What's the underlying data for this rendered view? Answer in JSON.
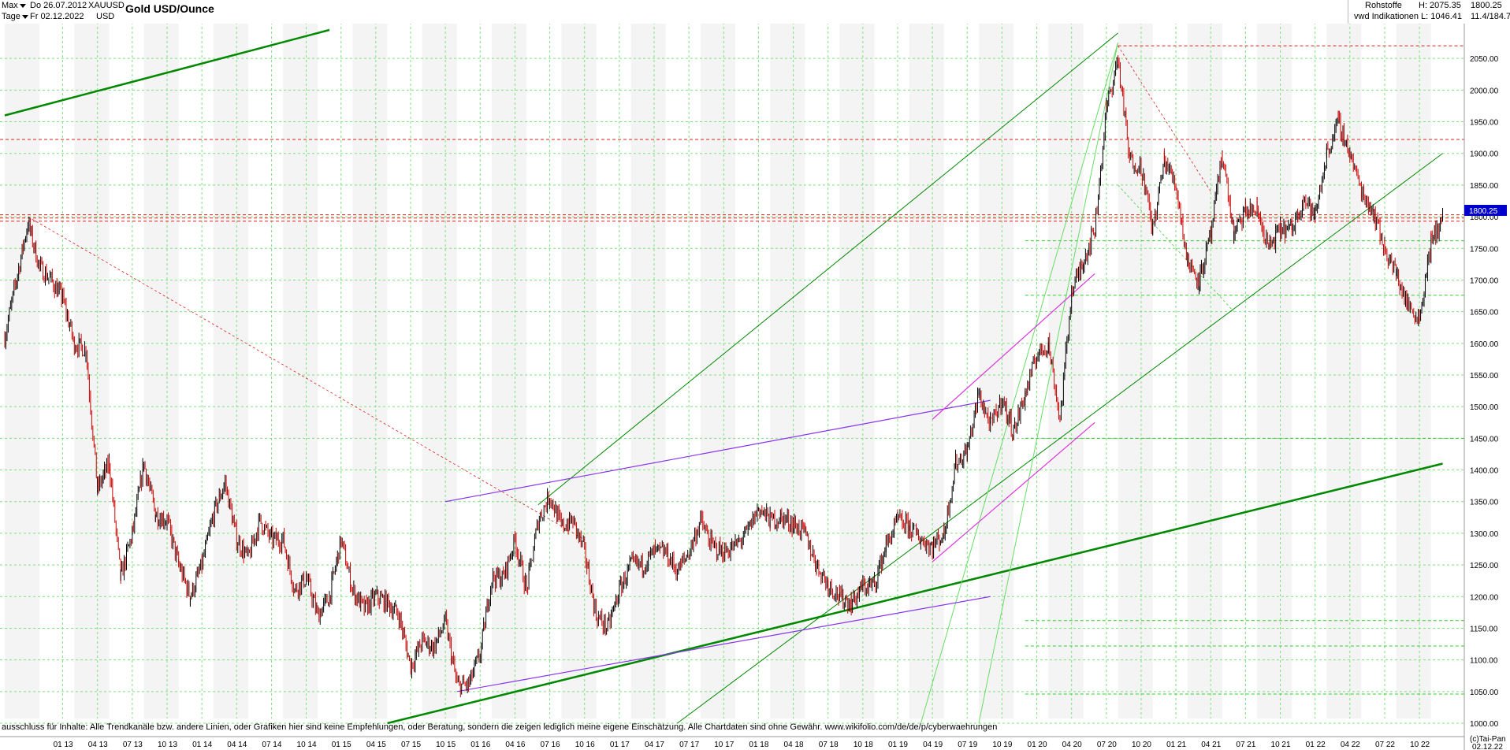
{
  "header": {
    "range_select": "Max",
    "interval_select": "Tage",
    "date_from": "Do 26.07.2012",
    "date_to": "Fr 02.12.2022",
    "symbol": "XAUUSD",
    "currency": "USD",
    "title": "Gold USD/Ounce",
    "category": "Rohstoffe",
    "source": "vwd Indikationen",
    "high_label": "H: 2075.35",
    "low_label": "L: 1046.41",
    "last_value": "1800.25",
    "range_info": "11.4/184.7"
  },
  "footer": {
    "disclaimer": "ausschluss für Inhalte: Alle Trendkanäle bzw. andere Linien, oder Grafiken hier sind keine Empfehlungen, oder Beratung, sondern die zeigen lediglich meine eigene Einschätzung. Alle Chartdaten sind ohne Gewähr.  www.wikifolio.com/de/de/p/cyberwaehrungen",
    "copyright": "(c)Tai-Pan",
    "last_date": "02.12.22"
  },
  "colors": {
    "candle_up": "#000000",
    "candle_down": "#cc0000",
    "grid": "#7fe07f",
    "trend_green": "#008800",
    "trend_light": "#66dd66",
    "trend_purple": "#8833ee",
    "trend_magenta": "#dd33dd",
    "support_red": "#dd2222",
    "current_price_bg": "#0000cc"
  },
  "chart_data": {
    "type": "candlestick",
    "title": "Gold USD/Ounce",
    "ylim": [
      1000,
      2100
    ],
    "y_ticks": [
      1000,
      1050,
      1100,
      1150,
      1200,
      1250,
      1300,
      1350,
      1400,
      1450,
      1500,
      1550,
      1600,
      1650,
      1700,
      1750,
      1800,
      1850,
      1900,
      1950,
      2000,
      2050
    ],
    "x_ticks": [
      "01 13",
      "04 13",
      "07 13",
      "10 13",
      "01 14",
      "04 14",
      "07 14",
      "10 14",
      "01 15",
      "04 15",
      "07 15",
      "10 15",
      "01 16",
      "04 16",
      "07 16",
      "10 16",
      "01 17",
      "04 17",
      "07 17",
      "10 17",
      "01 18",
      "04 18",
      "07 18",
      "10 18",
      "01 19",
      "04 19",
      "07 19",
      "10 19",
      "01 20",
      "04 20",
      "07 20",
      "10 20",
      "01 21",
      "04 21",
      "07 21",
      "10 21",
      "01 22",
      "04 22",
      "07 22",
      "10 22"
    ],
    "price_path": [
      [
        "2012-08",
        1610
      ],
      [
        "2012-09",
        1700
      ],
      [
        "2012-10",
        1790
      ],
      [
        "2012-11",
        1720
      ],
      [
        "2012-12",
        1700
      ],
      [
        "2013-01",
        1670
      ],
      [
        "2013-02",
        1600
      ],
      [
        "2013-03",
        1590
      ],
      [
        "2013-04",
        1370
      ],
      [
        "2013-05",
        1410
      ],
      [
        "2013-06",
        1230
      ],
      [
        "2013-07",
        1300
      ],
      [
        "2013-08",
        1410
      ],
      [
        "2013-09",
        1330
      ],
      [
        "2013-10",
        1320
      ],
      [
        "2013-11",
        1250
      ],
      [
        "2013-12",
        1200
      ],
      [
        "2014-01",
        1250
      ],
      [
        "2014-02",
        1330
      ],
      [
        "2014-03",
        1380
      ],
      [
        "2014-04",
        1290
      ],
      [
        "2014-05",
        1260
      ],
      [
        "2014-06",
        1320
      ],
      [
        "2014-07",
        1290
      ],
      [
        "2014-08",
        1290
      ],
      [
        "2014-09",
        1210
      ],
      [
        "2014-10",
        1230
      ],
      [
        "2014-11",
        1170
      ],
      [
        "2014-12",
        1200
      ],
      [
        "2015-01",
        1290
      ],
      [
        "2015-02",
        1210
      ],
      [
        "2015-03",
        1180
      ],
      [
        "2015-04",
        1200
      ],
      [
        "2015-05",
        1190
      ],
      [
        "2015-06",
        1170
      ],
      [
        "2015-07",
        1090
      ],
      [
        "2015-08",
        1130
      ],
      [
        "2015-09",
        1120
      ],
      [
        "2015-10",
        1160
      ],
      [
        "2015-11",
        1060
      ],
      [
        "2015-12",
        1060
      ],
      [
        "2016-01",
        1110
      ],
      [
        "2016-02",
        1230
      ],
      [
        "2016-03",
        1230
      ],
      [
        "2016-04",
        1290
      ],
      [
        "2016-05",
        1210
      ],
      [
        "2016-06",
        1320
      ],
      [
        "2016-07",
        1360
      ],
      [
        "2016-08",
        1310
      ],
      [
        "2016-09",
        1320
      ],
      [
        "2016-10",
        1270
      ],
      [
        "2016-11",
        1170
      ],
      [
        "2016-12",
        1150
      ],
      [
        "2017-01",
        1210
      ],
      [
        "2017-02",
        1250
      ],
      [
        "2017-03",
        1250
      ],
      [
        "2017-04",
        1270
      ],
      [
        "2017-05",
        1270
      ],
      [
        "2017-06",
        1240
      ],
      [
        "2017-07",
        1270
      ],
      [
        "2017-08",
        1320
      ],
      [
        "2017-09",
        1280
      ],
      [
        "2017-10",
        1270
      ],
      [
        "2017-11",
        1280
      ],
      [
        "2017-12",
        1300
      ],
      [
        "2018-01",
        1340
      ],
      [
        "2018-02",
        1320
      ],
      [
        "2018-03",
        1325
      ],
      [
        "2018-04",
        1315
      ],
      [
        "2018-05",
        1300
      ],
      [
        "2018-06",
        1250
      ],
      [
        "2018-07",
        1220
      ],
      [
        "2018-08",
        1200
      ],
      [
        "2018-09",
        1190
      ],
      [
        "2018-10",
        1215
      ],
      [
        "2018-11",
        1220
      ],
      [
        "2018-12",
        1280
      ],
      [
        "2019-01",
        1320
      ],
      [
        "2019-02",
        1310
      ],
      [
        "2019-03",
        1290
      ],
      [
        "2019-04",
        1280
      ],
      [
        "2019-05",
        1300
      ],
      [
        "2019-06",
        1410
      ],
      [
        "2019-07",
        1430
      ],
      [
        "2019-08",
        1520
      ],
      [
        "2019-09",
        1470
      ],
      [
        "2019-10",
        1510
      ],
      [
        "2019-11",
        1460
      ],
      [
        "2019-12",
        1520
      ],
      [
        "2020-01",
        1580
      ],
      [
        "2020-02",
        1600
      ],
      [
        "2020-03",
        1480
      ],
      [
        "2020-04",
        1680
      ],
      [
        "2020-05",
        1730
      ],
      [
        "2020-06",
        1780
      ],
      [
        "2020-07",
        1970
      ],
      [
        "2020-08",
        2050
      ],
      [
        "2020-09",
        1890
      ],
      [
        "2020-10",
        1880
      ],
      [
        "2020-11",
        1780
      ],
      [
        "2020-12",
        1890
      ],
      [
        "2021-01",
        1850
      ],
      [
        "2021-02",
        1730
      ],
      [
        "2021-03",
        1700
      ],
      [
        "2021-04",
        1770
      ],
      [
        "2021-05",
        1900
      ],
      [
        "2021-06",
        1770
      ],
      [
        "2021-07",
        1810
      ],
      [
        "2021-08",
        1810
      ],
      [
        "2021-09",
        1750
      ],
      [
        "2021-10",
        1780
      ],
      [
        "2021-11",
        1780
      ],
      [
        "2021-12",
        1830
      ],
      [
        "2022-01",
        1800
      ],
      [
        "2022-02",
        1900
      ],
      [
        "2022-03",
        1950
      ],
      [
        "2022-04",
        1900
      ],
      [
        "2022-05",
        1840
      ],
      [
        "2022-06",
        1810
      ],
      [
        "2022-07",
        1750
      ],
      [
        "2022-08",
        1710
      ],
      [
        "2022-09",
        1660
      ],
      [
        "2022-10",
        1640
      ],
      [
        "2022-11",
        1760
      ],
      [
        "2022-12",
        1800
      ]
    ],
    "high": 2075.35,
    "low": 1046.41,
    "last": 1800.25,
    "horizontal_levels": [
      {
        "value": 2070,
        "style": "red-dashed"
      },
      {
        "value": 1922,
        "style": "red-dashed"
      },
      {
        "value": 1803,
        "style": "red-dashed"
      },
      {
        "value": 1798,
        "style": "red-dashed"
      },
      {
        "value": 1793,
        "style": "red-dashed"
      },
      {
        "value": 1762,
        "style": "green-dashed"
      },
      {
        "value": 1676,
        "style": "green-dashed"
      },
      {
        "value": 1450,
        "style": "green-dashed"
      },
      {
        "value": 1162,
        "style": "green-dashed"
      },
      {
        "value": 1122,
        "style": "green-dashed"
      },
      {
        "value": 1046,
        "style": "green-dashed"
      }
    ]
  }
}
